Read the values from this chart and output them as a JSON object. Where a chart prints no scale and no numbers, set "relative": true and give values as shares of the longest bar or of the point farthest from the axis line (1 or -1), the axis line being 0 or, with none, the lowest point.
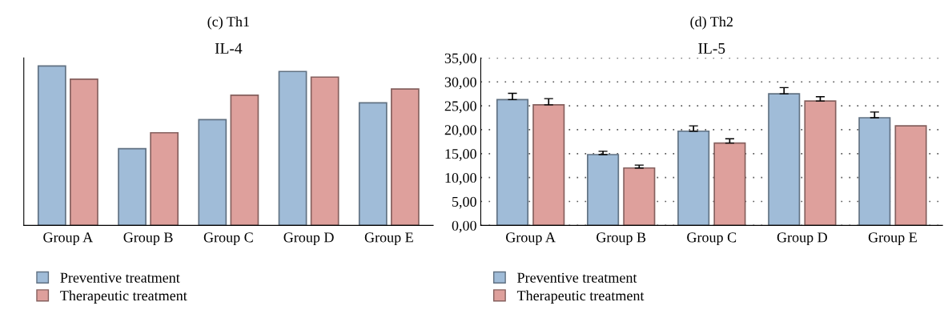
{
  "chart_data": [
    {
      "type": "bar",
      "title": "(c) Th1",
      "subtitle": "IL-4",
      "relative": true,
      "categories": [
        "Group A",
        "Group B",
        "Group C",
        "Group D",
        "Group E"
      ],
      "series": [
        {
          "name": "Preventive treatment",
          "color": "#a0bcd8",
          "values": [
            1.0,
            0.481,
            0.663,
            0.965,
            0.769
          ]
        },
        {
          "name": "Therapeutic treatment",
          "color": "#dea09c",
          "values": [
            0.917,
            0.581,
            0.816,
            0.93,
            0.855
          ]
        }
      ],
      "legend": "bottom"
    },
    {
      "type": "bar",
      "title": "(d) Th2",
      "subtitle": "IL-5",
      "categories": [
        "Group A",
        "Group B",
        "Group C",
        "Group D",
        "Group E"
      ],
      "series": [
        {
          "name": "Preventive treatment",
          "color": "#a0bcd8",
          "values": [
            26.3,
            14.8,
            19.7,
            27.5,
            22.5
          ],
          "errors": [
            1.3,
            0.7,
            1.1,
            1.3,
            1.2
          ]
        },
        {
          "name": "Therapeutic treatment",
          "color": "#dea09c",
          "values": [
            25.2,
            12.0,
            17.2,
            26.0,
            20.8
          ],
          "errors": [
            1.3,
            0.6,
            0.9,
            0.9,
            null
          ]
        }
      ],
      "ylim": [
        0,
        35
      ],
      "yticks": [
        {
          "value": 0,
          "label": "0,00"
        },
        {
          "value": 5,
          "label": "5,00"
        },
        {
          "value": 10,
          "label": "10,00"
        },
        {
          "value": 15,
          "label": "15,00"
        },
        {
          "value": 20,
          "label": "20,00"
        },
        {
          "value": 25,
          "label": "25,00"
        },
        {
          "value": 30,
          "label": "30,00"
        },
        {
          "value": 35,
          "label": "35,00"
        }
      ],
      "grid": "y",
      "legend": "bottom"
    }
  ]
}
